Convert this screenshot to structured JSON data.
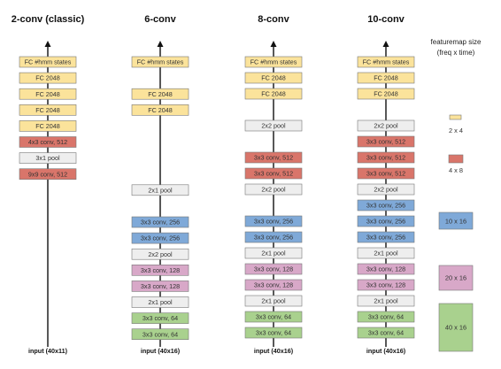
{
  "colors": {
    "fc": "#fbe39b",
    "pool": "#eeeeee",
    "conv512": "#d9756a",
    "conv256": "#7fa9d8",
    "conv128": "#d8a8c8",
    "conv64": "#a9d18e",
    "border": "#777777"
  },
  "columns": [
    {
      "title": "2-conv (classic)",
      "input_label": "input (40x11)",
      "blocks": [
        {
          "label": "FC #hmm states",
          "kind": "fc"
        },
        {
          "label": "FC 2048",
          "kind": "fc"
        },
        {
          "label": "FC 2048",
          "kind": "fc"
        },
        {
          "label": "FC 2048",
          "kind": "fc"
        },
        {
          "label": "FC 2048",
          "kind": "fc"
        },
        {
          "label": "4x3 conv, 512",
          "kind": "conv512"
        },
        {
          "label": "3x1 pool",
          "kind": "pool"
        },
        {
          "label": "9x9 conv, 512",
          "kind": "conv512"
        }
      ]
    },
    {
      "title": "6-conv",
      "input_label": "input (40x16)",
      "blocks": [
        {
          "label": "FC #hmm states",
          "kind": "fc"
        },
        {
          "label": "FC 2048",
          "kind": "fc"
        },
        {
          "label": "FC 2048",
          "kind": "fc"
        },
        {
          "label": "2x1 pool",
          "kind": "pool"
        },
        {
          "label": "3x3 conv, 256",
          "kind": "conv256"
        },
        {
          "label": "3x3 conv, 256",
          "kind": "conv256"
        },
        {
          "label": "2x2 pool",
          "kind": "pool"
        },
        {
          "label": "3x3 conv, 128",
          "kind": "conv128"
        },
        {
          "label": "3x3 conv, 128",
          "kind": "conv128"
        },
        {
          "label": "2x1 pool",
          "kind": "pool"
        },
        {
          "label": "3x3 conv, 64",
          "kind": "conv64"
        },
        {
          "label": "3x3 conv, 64",
          "kind": "conv64"
        }
      ]
    },
    {
      "title": "8-conv",
      "input_label": "input (40x16)",
      "blocks": [
        {
          "label": "FC #hmm states",
          "kind": "fc"
        },
        {
          "label": "FC 2048",
          "kind": "fc"
        },
        {
          "label": "FC 2048",
          "kind": "fc"
        },
        {
          "label": "2x2 pool",
          "kind": "pool"
        },
        {
          "label": "3x3 conv, 512",
          "kind": "conv512"
        },
        {
          "label": "3x3 conv, 512",
          "kind": "conv512"
        },
        {
          "label": "2x2 pool",
          "kind": "pool"
        },
        {
          "label": "3x3 conv, 256",
          "kind": "conv256"
        },
        {
          "label": "3x3 conv, 256",
          "kind": "conv256"
        },
        {
          "label": "2x1 pool",
          "kind": "pool"
        },
        {
          "label": "3x3 conv, 128",
          "kind": "conv128"
        },
        {
          "label": "3x3 conv, 128",
          "kind": "conv128"
        },
        {
          "label": "2x1 pool",
          "kind": "pool"
        },
        {
          "label": "3x3 conv, 64",
          "kind": "conv64"
        },
        {
          "label": "3x3 conv, 64",
          "kind": "conv64"
        }
      ]
    },
    {
      "title": "10-conv",
      "input_label": "input (40x16)",
      "blocks": [
        {
          "label": "FC #hmm states",
          "kind": "fc"
        },
        {
          "label": "FC 2048",
          "kind": "fc"
        },
        {
          "label": "FC 2048",
          "kind": "fc"
        },
        {
          "label": "2x2 pool",
          "kind": "pool"
        },
        {
          "label": "3x3 conv, 512",
          "kind": "conv512"
        },
        {
          "label": "3x3 conv, 512",
          "kind": "conv512"
        },
        {
          "label": "3x3 conv, 512",
          "kind": "conv512"
        },
        {
          "label": "2x2 pool",
          "kind": "pool"
        },
        {
          "label": "3x3 conv, 256",
          "kind": "conv256"
        },
        {
          "label": "3x3 conv, 256",
          "kind": "conv256"
        },
        {
          "label": "3x3 conv, 256",
          "kind": "conv256"
        },
        {
          "label": "2x1 pool",
          "kind": "pool"
        },
        {
          "label": "3x3 conv, 128",
          "kind": "conv128"
        },
        {
          "label": "3x3 conv, 128",
          "kind": "conv128"
        },
        {
          "label": "2x1 pool",
          "kind": "pool"
        },
        {
          "label": "3x3 conv, 64",
          "kind": "conv64"
        },
        {
          "label": "3x3 conv, 64",
          "kind": "conv64"
        }
      ]
    }
  ],
  "legend": {
    "title_line1": "featuremap size",
    "title_line2": "(freq x time)",
    "items": [
      {
        "label": "2 x 4",
        "kind": "fc"
      },
      {
        "label": "4 x 8",
        "kind": "conv512"
      },
      {
        "label": "10 x 16",
        "kind": "conv256"
      },
      {
        "label": "20 x 16",
        "kind": "conv128"
      },
      {
        "label": "40 x 16",
        "kind": "conv64"
      }
    ]
  }
}
